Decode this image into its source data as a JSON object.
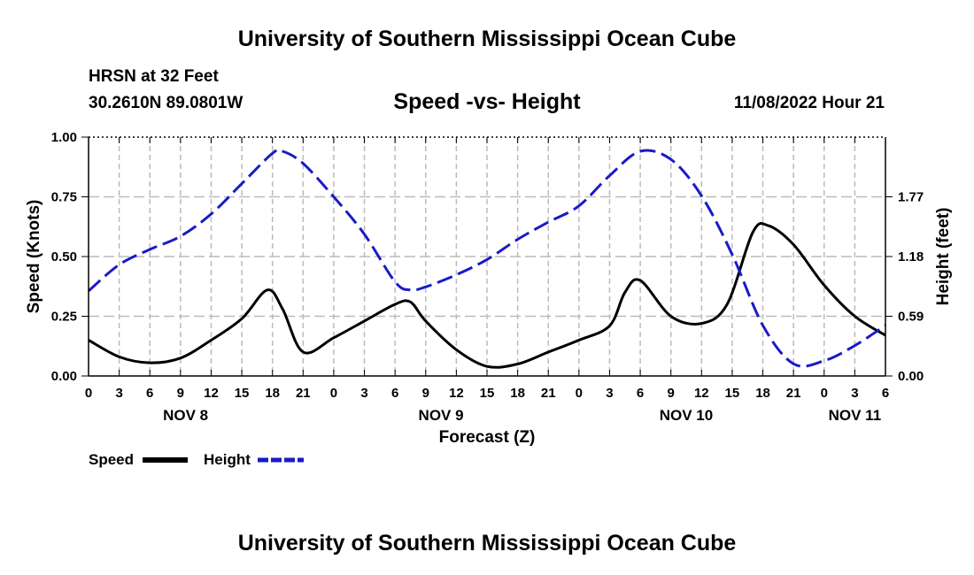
{
  "header": {
    "title": "University of Southern Mississippi Ocean Cube",
    "station": "HRSN at 32 Feet",
    "coords": "30.2610N  89.0801W",
    "subtitle": "Speed -vs- Height",
    "timestamp": "11/08/2022 Hour 21"
  },
  "footer": {
    "title": "University of Southern Mississippi Ocean Cube"
  },
  "legend": {
    "speed_label": "Speed",
    "height_label": "Height"
  },
  "colors": {
    "speed": "#000000",
    "height": "#1a1ac8",
    "grid": "#bbbbbb"
  },
  "chart_data": {
    "type": "line",
    "title": "Speed -vs- Height",
    "xlabel": "Forecast (Z)",
    "ylabel": "Speed (Knots)",
    "y2label": "Height (feet)",
    "xlim": [
      0,
      78
    ],
    "ylim": [
      0,
      1.0
    ],
    "y2lim": [
      0,
      2.36
    ],
    "x_tick_labels": [
      "0",
      "3",
      "6",
      "9",
      "12",
      "15",
      "18",
      "21",
      "0",
      "3",
      "6",
      "9",
      "12",
      "15",
      "18",
      "21",
      "0",
      "3",
      "6",
      "9",
      "12",
      "15",
      "18",
      "21",
      "0",
      "3",
      "6"
    ],
    "date_labels": [
      {
        "label": "NOV 8",
        "x": 9.5
      },
      {
        "label": "NOV 9",
        "x": 34.5
      },
      {
        "label": "NOV 10",
        "x": 58.5
      },
      {
        "label": "NOV 11",
        "x": 75
      }
    ],
    "y_ticks": [
      "0.00",
      "0.25",
      "0.50",
      "0.75",
      "1.00"
    ],
    "y2_ticks": [
      "0.00",
      "0.59",
      "1.18",
      "1.77"
    ],
    "series": [
      {
        "name": "Speed",
        "axis": "left",
        "style": "solid",
        "x": [
          0,
          3,
          6,
          9,
          12,
          15,
          17.5,
          19,
          21,
          24,
          27,
          30,
          31.5,
          33,
          36,
          39,
          42,
          45,
          48,
          51,
          52.5,
          54,
          57,
          60,
          62.5,
          65,
          66.5,
          69,
          72,
          75,
          78
        ],
        "y": [
          0.15,
          0.08,
          0.055,
          0.075,
          0.15,
          0.24,
          0.36,
          0.28,
          0.1,
          0.16,
          0.23,
          0.3,
          0.31,
          0.23,
          0.11,
          0.04,
          0.05,
          0.1,
          0.15,
          0.21,
          0.35,
          0.4,
          0.25,
          0.22,
          0.3,
          0.6,
          0.63,
          0.55,
          0.38,
          0.25,
          0.17
        ]
      },
      {
        "name": "Height",
        "axis": "right",
        "style": "dashed",
        "x": [
          0,
          3,
          6,
          9,
          12,
          15,
          18,
          19,
          21,
          24,
          27,
          30,
          31.5,
          33,
          36,
          39,
          42,
          45,
          48,
          51,
          54,
          57,
          60,
          63,
          66,
          69,
          72,
          75,
          78
        ],
        "y": [
          0.84,
          1.1,
          1.25,
          1.38,
          1.6,
          1.9,
          2.2,
          2.22,
          2.1,
          1.77,
          1.4,
          0.93,
          0.85,
          0.88,
          1.0,
          1.15,
          1.35,
          1.52,
          1.68,
          1.98,
          2.22,
          2.14,
          1.78,
          1.2,
          0.5,
          0.12,
          0.15,
          0.3,
          0.5
        ]
      }
    ]
  }
}
